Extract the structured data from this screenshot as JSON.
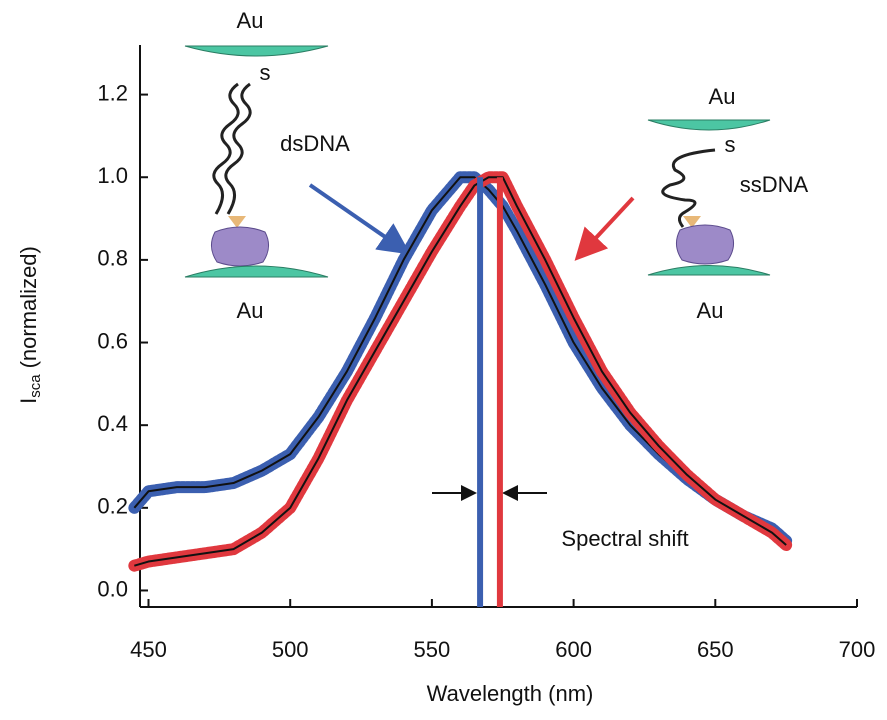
{
  "chart_data": {
    "type": "line",
    "xlabel": "Wavelength (nm)",
    "ylabel": {
      "symbol": "I",
      "subscript": "sca",
      "text": "(normalized)"
    },
    "x": [
      445,
      450,
      460,
      470,
      480,
      490,
      500,
      510,
      520,
      530,
      540,
      550,
      560,
      565,
      570,
      575,
      580,
      590,
      600,
      610,
      620,
      630,
      640,
      650,
      660,
      670,
      675
    ],
    "series": [
      {
        "name": "dsDNA",
        "color": "#3b5fb0",
        "values": [
          0.2,
          0.24,
          0.25,
          0.25,
          0.26,
          0.29,
          0.33,
          0.42,
          0.53,
          0.66,
          0.8,
          0.92,
          1.0,
          1.0,
          0.97,
          0.93,
          0.87,
          0.74,
          0.6,
          0.49,
          0.4,
          0.33,
          0.27,
          0.22,
          0.18,
          0.15,
          0.12
        ]
      },
      {
        "name": "ssDNA",
        "color": "#e0383e",
        "values": [
          0.06,
          0.07,
          0.08,
          0.09,
          0.1,
          0.14,
          0.2,
          0.32,
          0.46,
          0.58,
          0.7,
          0.82,
          0.93,
          0.98,
          1.0,
          1.0,
          0.93,
          0.8,
          0.66,
          0.53,
          0.43,
          0.35,
          0.28,
          0.22,
          0.18,
          0.14,
          0.11
        ]
      }
    ],
    "fit_color": "#111111",
    "peak_lines": [
      {
        "x": 567,
        "color": "#3b5fb0"
      },
      {
        "x": 574,
        "color": "#e0383e"
      }
    ],
    "annotation": "Spectral shift",
    "insets": {
      "top_metal": "Au",
      "bottom_metal": "Au",
      "linker": "s"
    },
    "xlim": [
      447,
      700
    ],
    "xticks": [
      450,
      500,
      550,
      600,
      650,
      700
    ],
    "ylim": [
      -0.04,
      1.32
    ],
    "yticks": [
      {
        "value": 0,
        "label": "0.0"
      },
      0.2,
      0.4,
      0.6,
      0.8,
      {
        "value": 1,
        "label": "1.0"
      },
      1.2
    ],
    "grid": false
  }
}
